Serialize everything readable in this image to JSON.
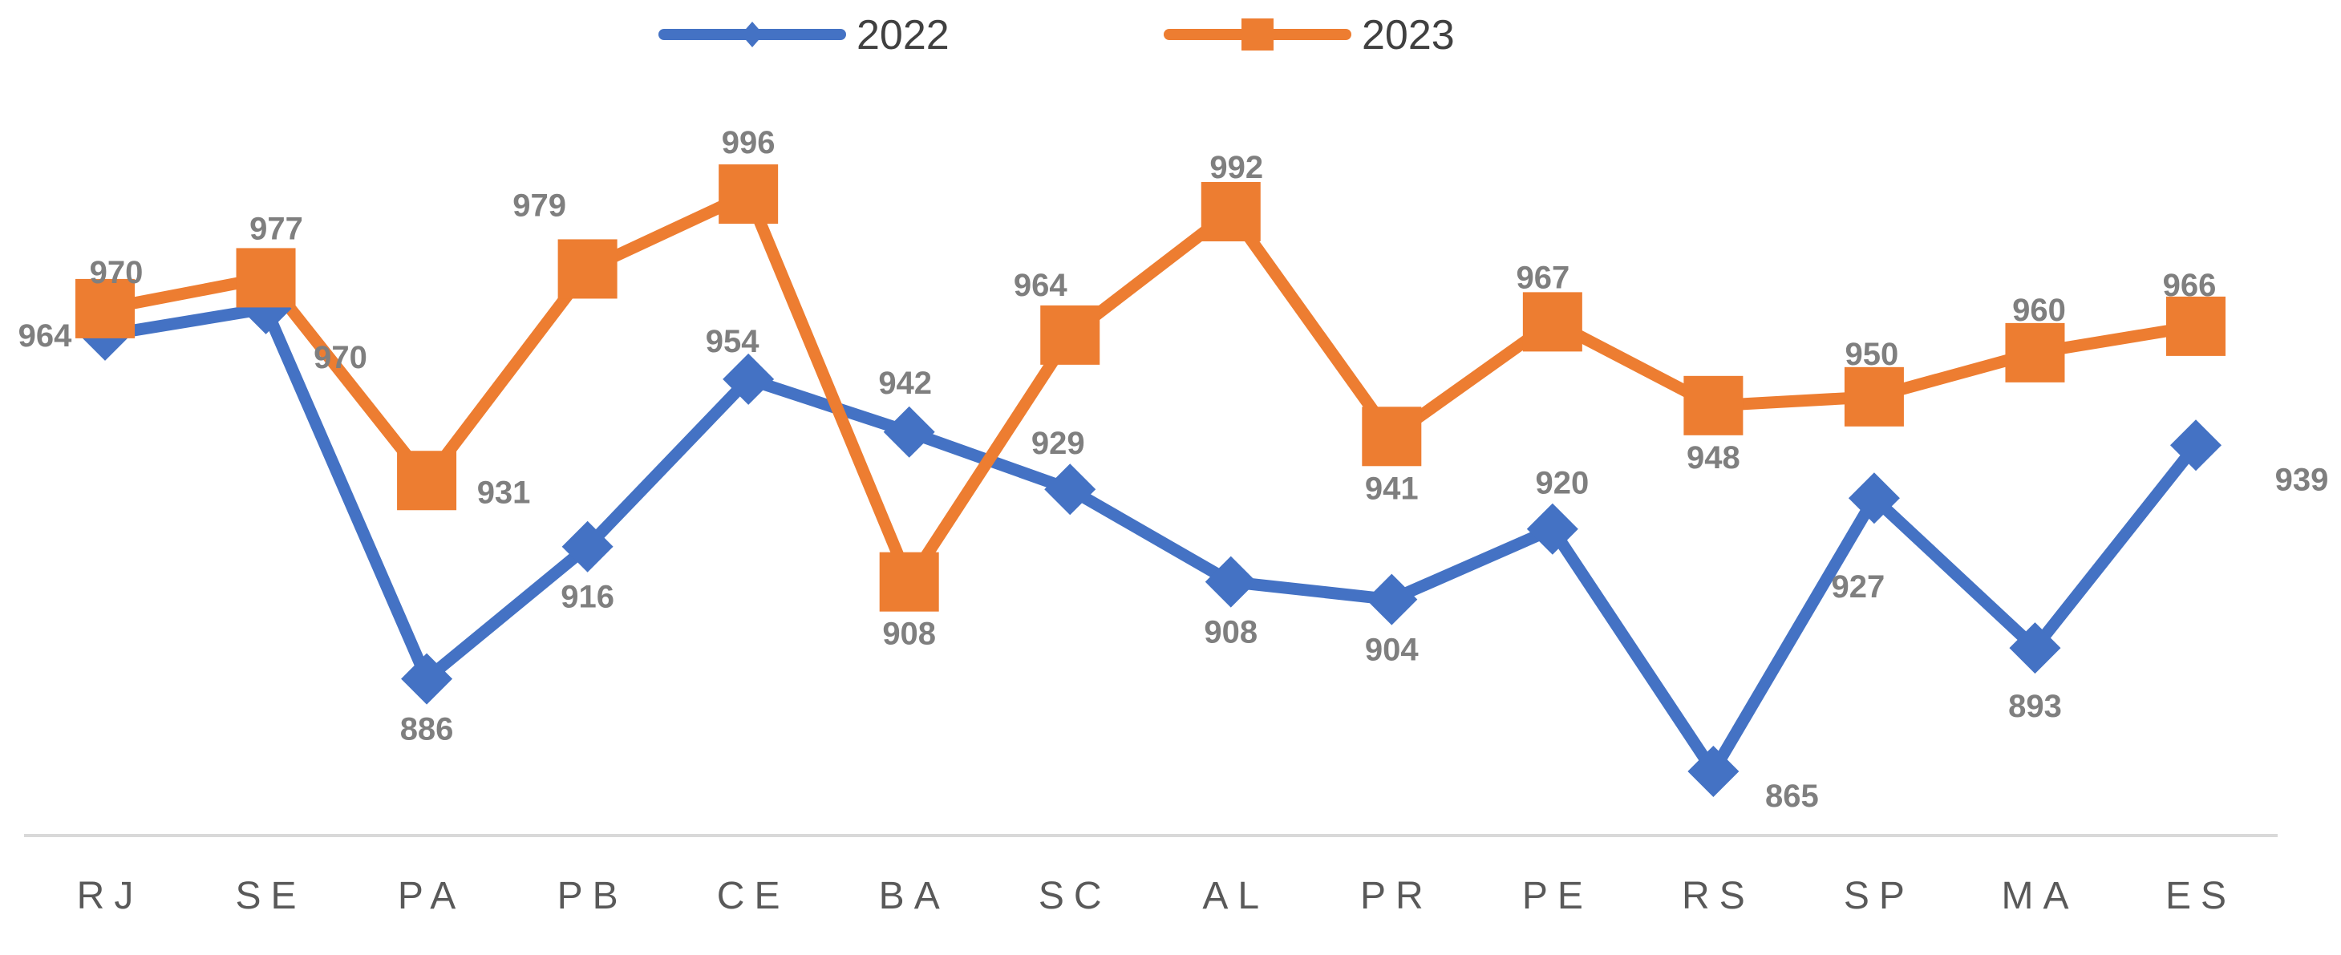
{
  "chart_data": {
    "type": "line",
    "categories": [
      "RJ",
      "SE",
      "PA",
      "PB",
      "CE",
      "BA",
      "SC",
      "AL",
      "PR",
      "PE",
      "RS",
      "SP",
      "MA",
      "ES"
    ],
    "series": [
      {
        "name": "2022",
        "color": "#4472C4",
        "marker": "diamond",
        "values": [
          964,
          970,
          886,
          916,
          954,
          942,
          929,
          908,
          904,
          920,
          865,
          927,
          893,
          939
        ]
      },
      {
        "name": "2023",
        "color": "#ED7D31",
        "marker": "square",
        "values": [
          970,
          977,
          931,
          979,
          996,
          908,
          964,
          992,
          941,
          967,
          948,
          950,
          960,
          966
        ]
      }
    ],
    "legend": "top",
    "grid": false,
    "data_labels": true
  }
}
